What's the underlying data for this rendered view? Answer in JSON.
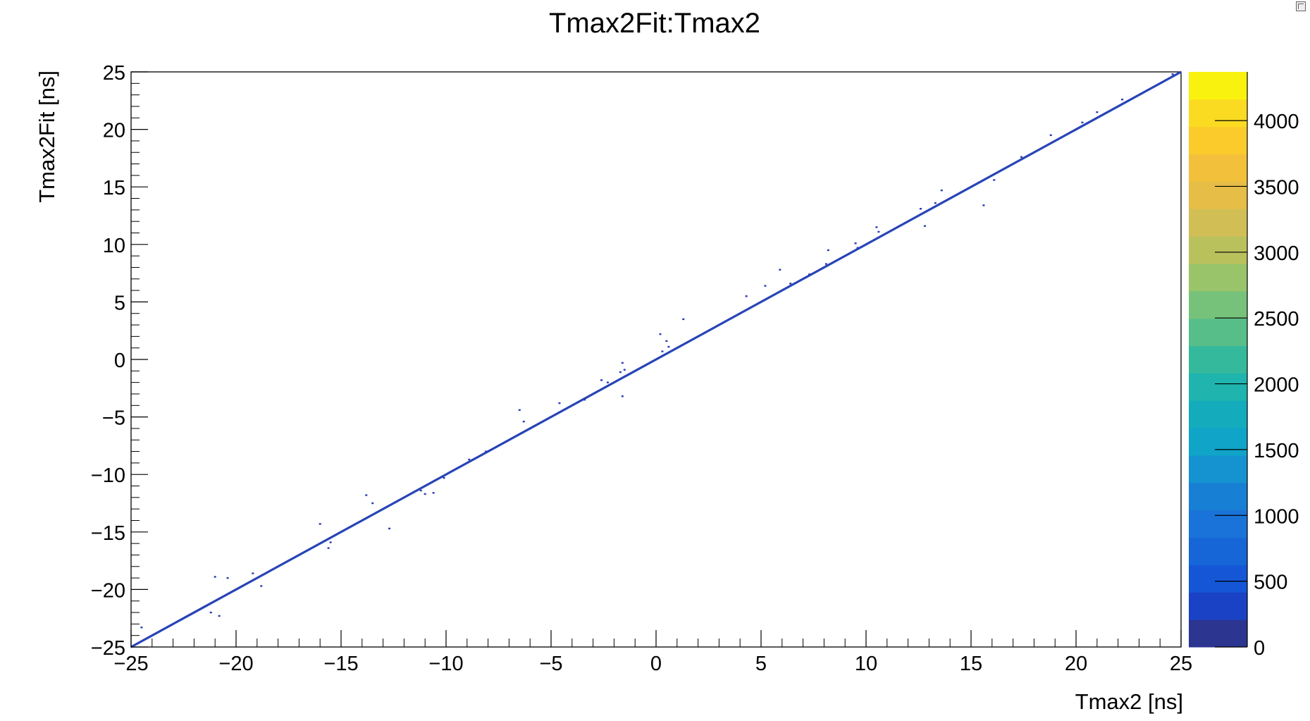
{
  "chart_data": {
    "type": "heatmap",
    "title": "Tmax2Fit:Tmax2",
    "xlabel": "Tmax2  [ns]",
    "ylabel": "Tmax2Fit  [ns]",
    "xlim": [
      -25,
      25
    ],
    "ylim": [
      -25,
      25
    ],
    "x_ticks": [
      "−25",
      "−20",
      "−15",
      "−10",
      "−5",
      "0",
      "5",
      "10",
      "15",
      "20",
      "25"
    ],
    "x_tick_values": [
      -25,
      -20,
      -15,
      -10,
      -5,
      0,
      5,
      10,
      15,
      20,
      25
    ],
    "y_ticks": [
      "−25",
      "−20",
      "−15",
      "−10",
      "−5",
      "0",
      "5",
      "10",
      "15",
      "20",
      "25"
    ],
    "y_tick_values": [
      -25,
      -20,
      -15,
      -10,
      -5,
      0,
      5,
      10,
      15,
      20,
      25
    ],
    "z_ticks": [
      "0",
      "500",
      "1000",
      "1500",
      "2000",
      "2500",
      "3000",
      "3500",
      "4000"
    ],
    "z_tick_values": [
      0,
      500,
      1000,
      1500,
      2000,
      2500,
      3000,
      3500,
      4000
    ],
    "zlim": [
      0,
      4370
    ],
    "diagonal": {
      "x": [
        -25,
        25
      ],
      "y": [
        -25,
        25
      ],
      "description_value": "Tmax2Fit ≈ Tmax2"
    },
    "outliers": [
      [
        -24.5,
        -23.3
      ],
      [
        -21.0,
        -18.9
      ],
      [
        -20.4,
        -19.0
      ],
      [
        -21.2,
        -22.0
      ],
      [
        -20.8,
        -22.3
      ],
      [
        -19.2,
        -18.6
      ],
      [
        -18.8,
        -19.7
      ],
      [
        -16.0,
        -14.3
      ],
      [
        -15.5,
        -15.9
      ],
      [
        -15.6,
        -16.4
      ],
      [
        -13.8,
        -11.8
      ],
      [
        -13.5,
        -12.5
      ],
      [
        -12.7,
        -14.7
      ],
      [
        -11.2,
        -11.4
      ],
      [
        -10.6,
        -11.6
      ],
      [
        -11.0,
        -11.7
      ],
      [
        -10.1,
        -10.3
      ],
      [
        -8.9,
        -8.7
      ],
      [
        -8.1,
        -8.0
      ],
      [
        -6.5,
        -4.4
      ],
      [
        -6.3,
        -5.4
      ],
      [
        -4.6,
        -3.8
      ],
      [
        -3.4,
        -3.5
      ],
      [
        -2.6,
        -1.8
      ],
      [
        -2.3,
        -2.0
      ],
      [
        -1.6,
        -0.3
      ],
      [
        -1.5,
        -0.9
      ],
      [
        -1.7,
        -1.1
      ],
      [
        -1.6,
        -3.2
      ],
      [
        0.2,
        2.2
      ],
      [
        0.5,
        1.6
      ],
      [
        0.6,
        1.1
      ],
      [
        1.3,
        3.5
      ],
      [
        0.3,
        0.7
      ],
      [
        4.3,
        5.5
      ],
      [
        5.2,
        6.4
      ],
      [
        5.9,
        7.8
      ],
      [
        6.4,
        6.6
      ],
      [
        7.3,
        7.4
      ],
      [
        8.2,
        9.5
      ],
      [
        8.1,
        8.3
      ],
      [
        9.5,
        10.1
      ],
      [
        9.6,
        9.7
      ],
      [
        10.5,
        11.5
      ],
      [
        10.6,
        11.1
      ],
      [
        12.8,
        11.6
      ],
      [
        12.6,
        13.1
      ],
      [
        13.3,
        13.6
      ],
      [
        13.6,
        14.7
      ],
      [
        15.6,
        13.4
      ],
      [
        16.1,
        15.6
      ],
      [
        17.4,
        17.6
      ],
      [
        18.8,
        19.5
      ],
      [
        20.3,
        20.6
      ],
      [
        21.0,
        21.5
      ],
      [
        22.2,
        22.6
      ],
      [
        24.6,
        24.8
      ]
    ],
    "colormap": [
      "#2c3590",
      "#1a42c4",
      "#1456d6",
      "#1766d8",
      "#1a73d8",
      "#1880d4",
      "#1493d0",
      "#0fa4c8",
      "#14acbc",
      "#1fb4ad",
      "#35b99c",
      "#57be8a",
      "#77c27a",
      "#99c46a",
      "#b9c15d",
      "#d1bf55",
      "#e5bd47",
      "#f2c03a",
      "#fbcb2c",
      "#fbdb22",
      "#f9f20f"
    ],
    "grid": false,
    "legend": "none"
  }
}
